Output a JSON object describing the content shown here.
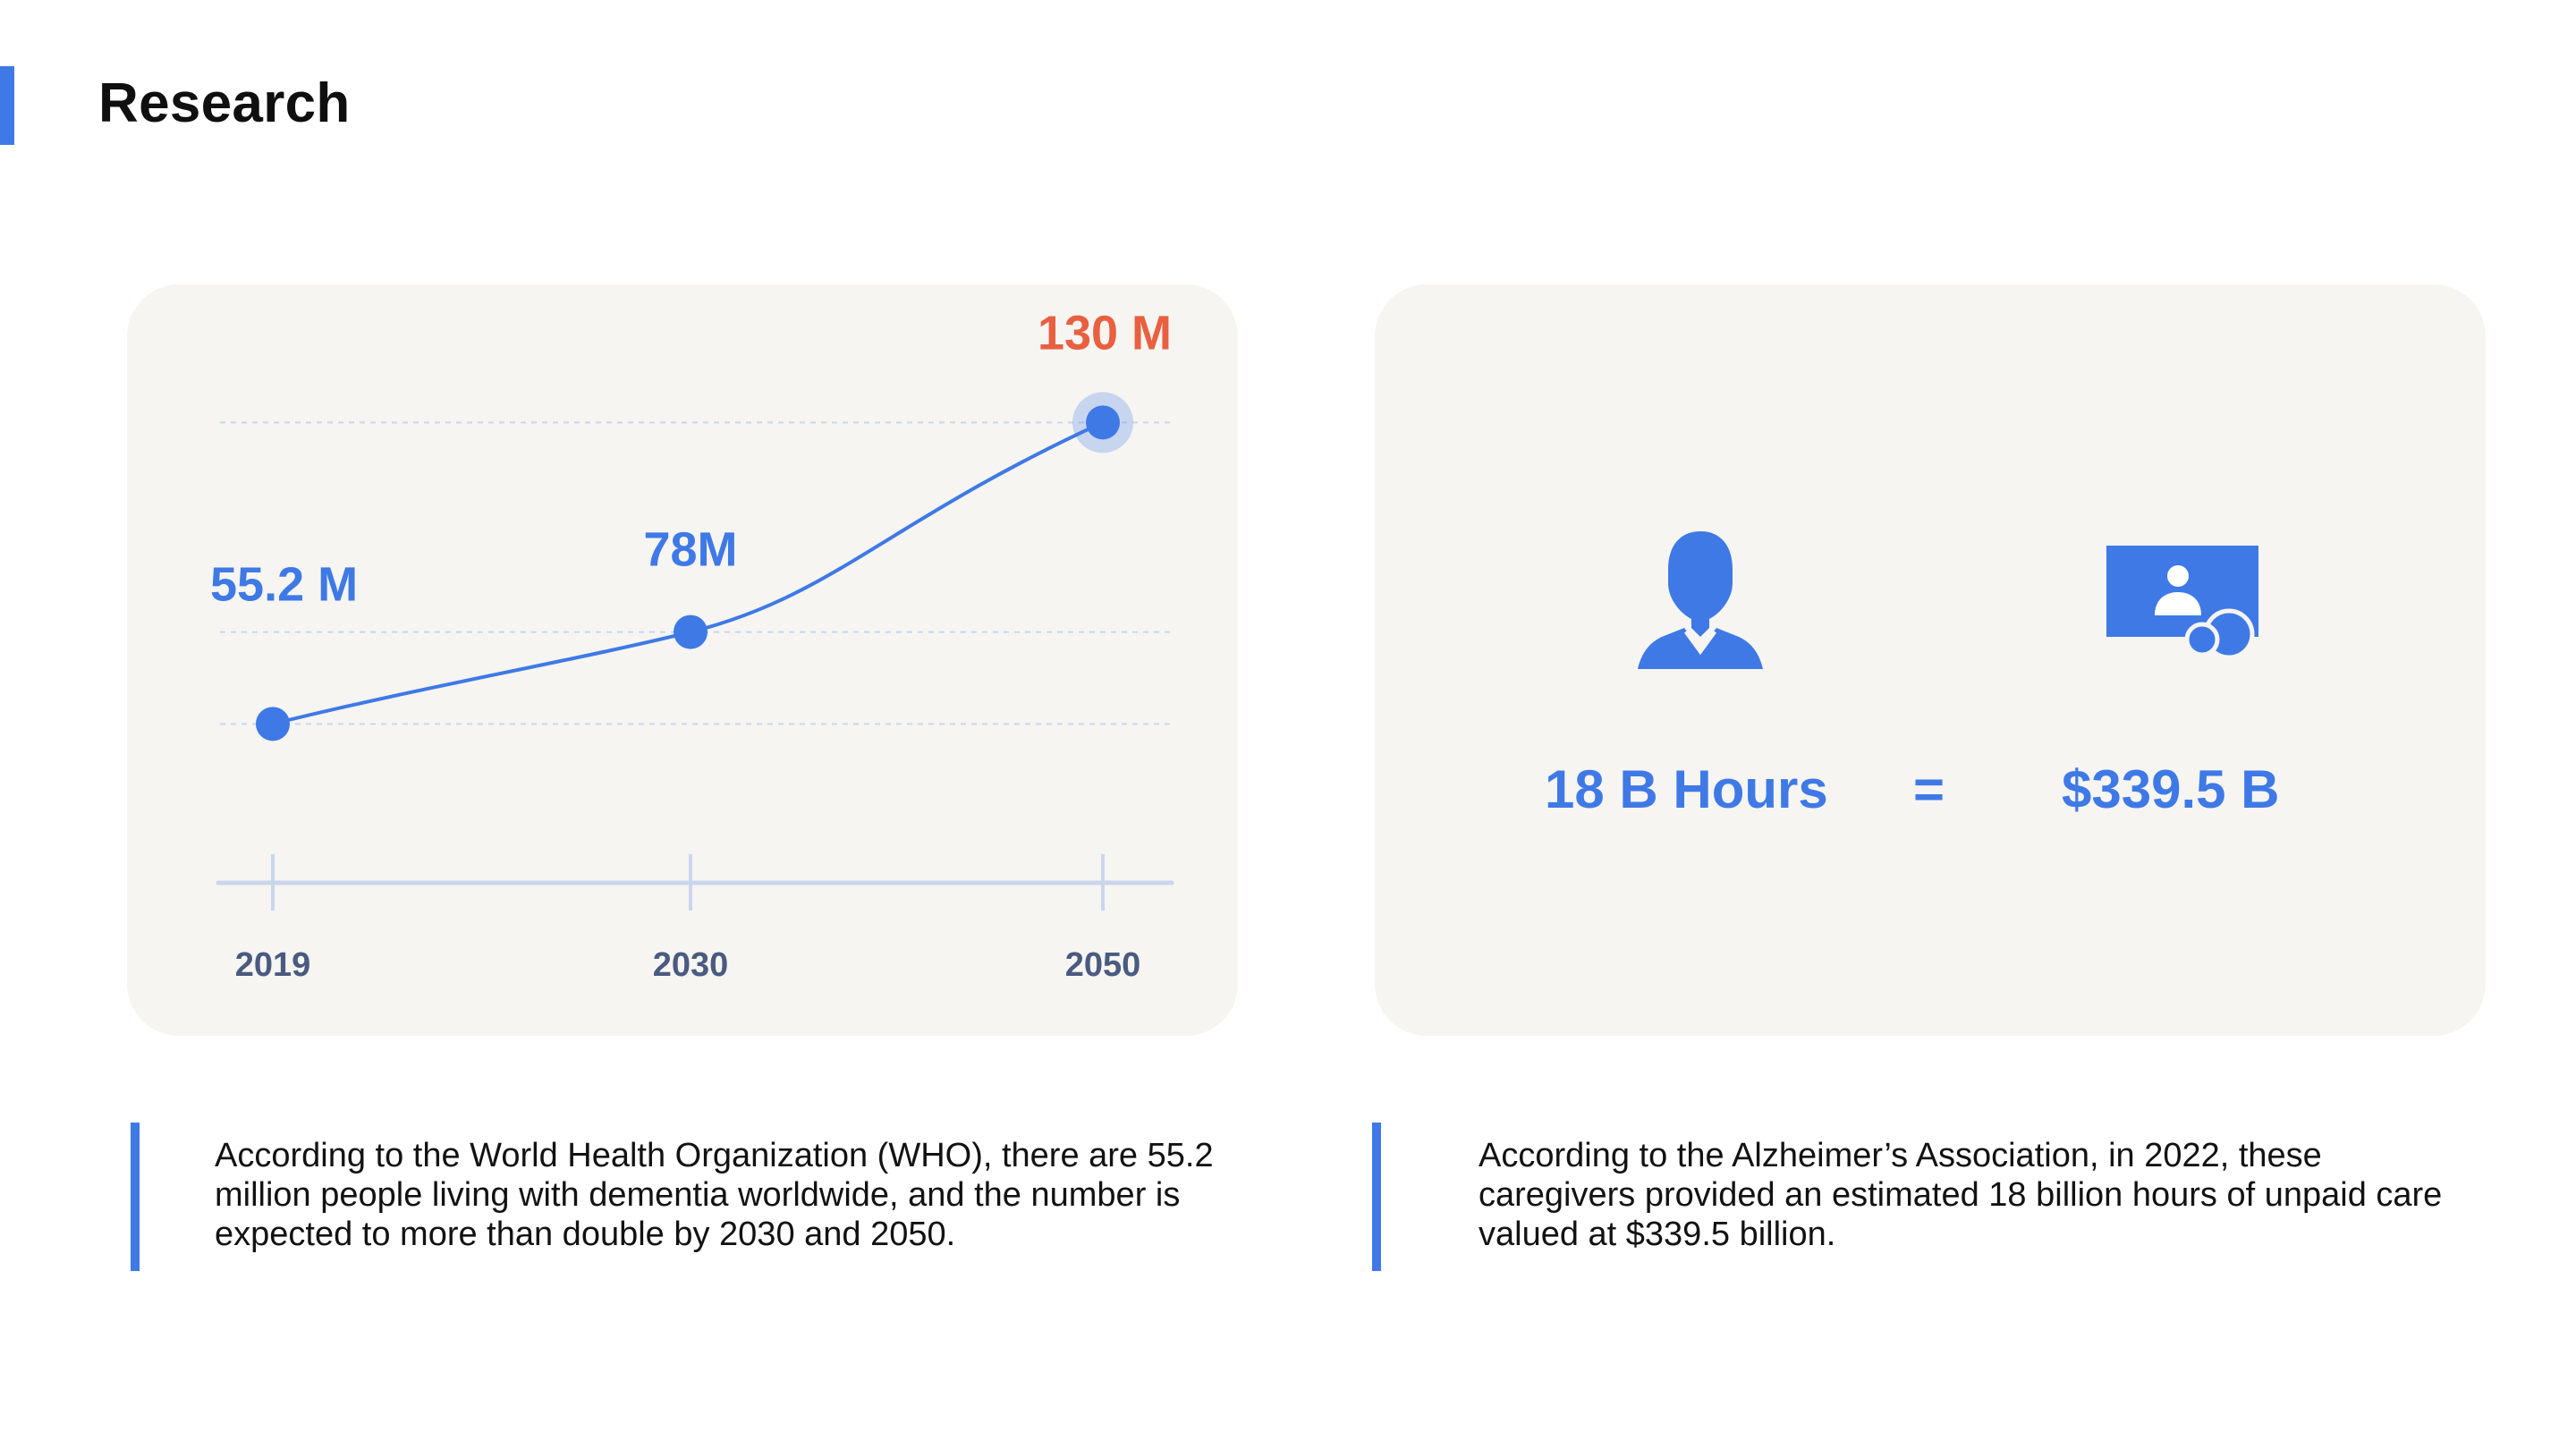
{
  "page": {
    "title": "Research"
  },
  "colors": {
    "accent": "#3f79e6",
    "highlight": "#e8603f",
    "card_background": "#f6f5f2",
    "axis": "#c9d6ec",
    "tick_label": "#4a5a80"
  },
  "chart_data": {
    "type": "line",
    "title": "",
    "xlabel": "",
    "ylabel": "",
    "categories": [
      "2019",
      "2030",
      "2050"
    ],
    "series": [
      {
        "values": [
          55.2,
          78,
          130
        ]
      }
    ],
    "data_labels": [
      "55.2 M",
      "78M",
      "130 M"
    ],
    "highlight_index": 2,
    "ylim": [
      0,
      130
    ],
    "grid": true,
    "legend": "none"
  },
  "caregiving": {
    "hours_label": "18 B Hours",
    "equals_label": "=",
    "value_label": "$339.5 B",
    "icons": [
      "person-icon",
      "video-call-icon"
    ]
  },
  "descriptions": {
    "left": "According to the World Health Organization (WHO), there are 55.2 million people living with dementia worldwide, and the number is expected to more than double by 2030 and 2050.",
    "right": "According to the Alzheimer’s Association, in 2022, these caregivers provided an estimated 18 billion hours of unpaid care valued at $339.5 billion."
  }
}
